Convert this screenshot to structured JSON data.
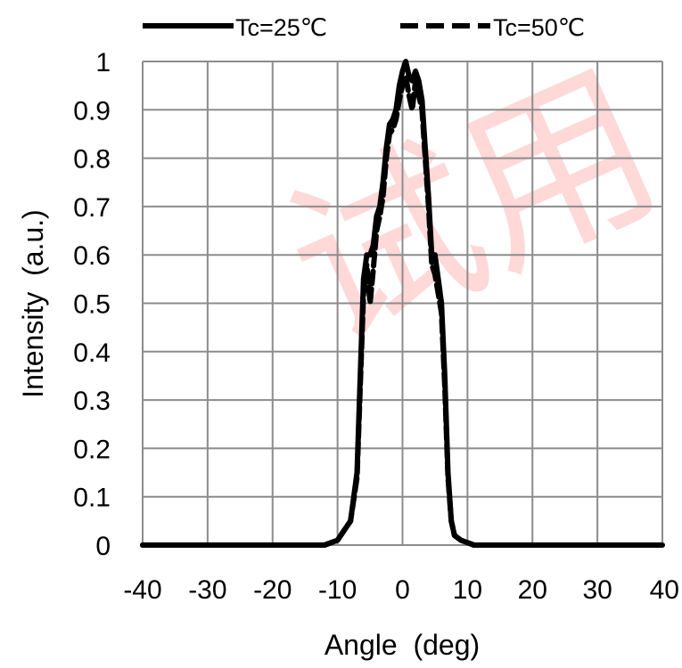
{
  "chart_data": {
    "type": "line",
    "title": "",
    "xlabel": "Angle  (deg)",
    "ylabel": "Intensity  (a.u.)",
    "xlim": [
      -40,
      40
    ],
    "ylim": [
      0,
      1
    ],
    "x_ticks": [
      -40,
      -30,
      -20,
      -10,
      0,
      10,
      20,
      30,
      40
    ],
    "y_ticks": [
      0,
      0.1,
      0.2,
      0.3,
      0.4,
      0.5,
      0.6,
      0.7,
      0.8,
      0.9,
      1
    ],
    "x_tick_labels": [
      "-40",
      "-30",
      "-20",
      "-10",
      "0",
      "10",
      "20",
      "30",
      "40"
    ],
    "y_tick_labels": [
      "0",
      "0.1",
      "0.2",
      "0.3",
      "0.4",
      "0.5",
      "0.6",
      "0.7",
      "0.8",
      "0.9",
      "1"
    ],
    "grid": true,
    "legend_position": "top",
    "series": [
      {
        "name": "Tc=25℃",
        "line_style": "solid",
        "color": "#000000",
        "x": [
          -40,
          -12,
          -10,
          -9,
          -8,
          -7,
          -6.5,
          -6,
          -5.5,
          -5,
          -4.5,
          -4,
          -3.5,
          -3,
          -2.5,
          -2,
          -1.5,
          -1,
          -0.5,
          0,
          0.5,
          1,
          1.5,
          2,
          2.5,
          3,
          3.5,
          4,
          4.5,
          5,
          5.5,
          6,
          6.5,
          7,
          7.5,
          8,
          9,
          11,
          40
        ],
        "y": [
          0,
          0,
          0.01,
          0.03,
          0.05,
          0.15,
          0.35,
          0.55,
          0.6,
          0.6,
          0.62,
          0.68,
          0.7,
          0.75,
          0.82,
          0.87,
          0.88,
          0.9,
          0.95,
          0.98,
          1.0,
          0.97,
          0.96,
          0.98,
          0.96,
          0.92,
          0.82,
          0.72,
          0.6,
          0.6,
          0.55,
          0.5,
          0.35,
          0.15,
          0.05,
          0.02,
          0.01,
          0,
          0
        ]
      },
      {
        "name": "Tc=50℃",
        "line_style": "dashed",
        "color": "#000000",
        "x": [
          -40,
          -12,
          -10,
          -9,
          -8,
          -7,
          -6.5,
          -6,
          -5.5,
          -5,
          -4.5,
          -4,
          -3.5,
          -3,
          -2.5,
          -2,
          -1.5,
          -1,
          -0.5,
          0,
          0.5,
          1,
          1.5,
          2,
          2.5,
          3,
          3.5,
          4,
          4.5,
          5,
          5.5,
          6,
          6.5,
          7,
          7.5,
          8,
          9,
          11,
          40
        ],
        "y": [
          0,
          0,
          0.01,
          0.03,
          0.05,
          0.14,
          0.33,
          0.52,
          0.58,
          0.5,
          0.57,
          0.65,
          0.68,
          0.72,
          0.8,
          0.85,
          0.86,
          0.88,
          0.92,
          0.95,
          0.97,
          0.93,
          0.9,
          0.96,
          0.93,
          0.9,
          0.8,
          0.7,
          0.58,
          0.56,
          0.52,
          0.48,
          0.33,
          0.14,
          0.05,
          0.02,
          0.01,
          0,
          0
        ]
      }
    ],
    "watermark_text": "试用"
  }
}
